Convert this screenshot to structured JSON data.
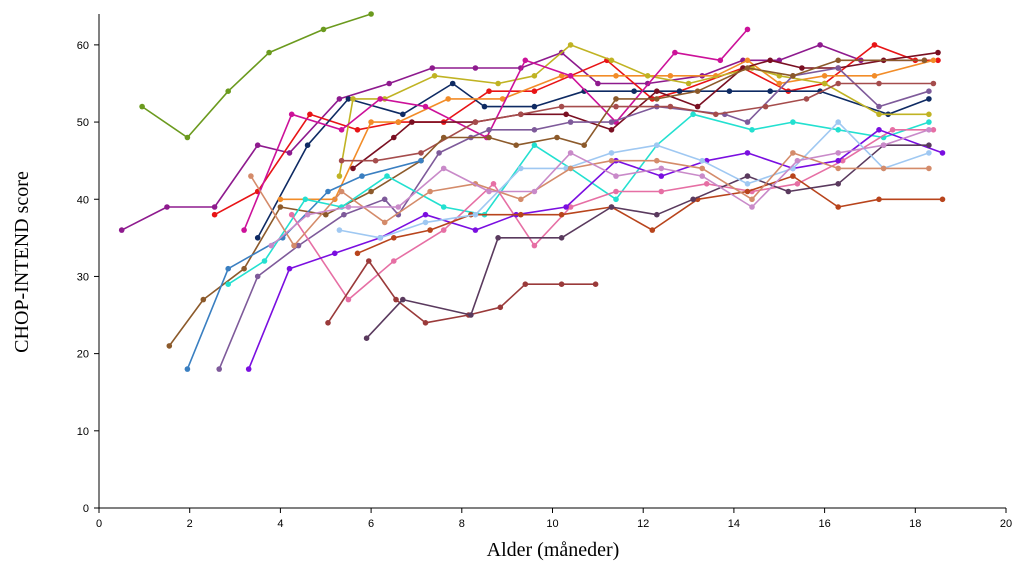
{
  "chart_data": {
    "type": "line",
    "title": "",
    "xlabel": "Alder (måneder)",
    "ylabel": "CHOP-INTEND score",
    "xlim": [
      0,
      20
    ],
    "ylim": [
      0,
      64
    ],
    "xticks": [
      "0",
      "2",
      "4",
      "6",
      "8",
      "10",
      "12",
      "14",
      "16",
      "18",
      "20"
    ],
    "yticks": [
      "0",
      "10",
      "20",
      "30",
      "40",
      "50",
      "60"
    ],
    "grid": false,
    "legend": "none",
    "series": [
      {
        "color": "#6b9a1e",
        "points": [
          [
            0.95,
            52
          ],
          [
            1.95,
            48
          ],
          [
            2.85,
            54
          ],
          [
            3.75,
            59
          ],
          [
            4.95,
            62
          ],
          [
            6.0,
            64
          ]
        ]
      },
      {
        "color": "#8e1a8e",
        "points": [
          [
            0.5,
            36
          ],
          [
            1.5,
            39
          ],
          [
            2.55,
            39
          ],
          [
            3.5,
            47
          ],
          [
            4.2,
            46
          ],
          [
            5.3,
            53
          ],
          [
            6.4,
            55
          ],
          [
            7.35,
            57
          ],
          [
            8.3,
            57
          ],
          [
            9.3,
            57
          ],
          [
            10.2,
            59
          ],
          [
            11.0,
            55
          ],
          [
            12.1,
            55
          ],
          [
            13.3,
            56
          ],
          [
            14.2,
            58
          ],
          [
            15.0,
            58
          ],
          [
            15.9,
            60
          ],
          [
            16.8,
            58
          ],
          [
            18.2,
            58
          ]
        ]
      },
      {
        "color": "#e81416",
        "points": [
          [
            2.55,
            38
          ],
          [
            3.5,
            41
          ],
          [
            4.65,
            51
          ],
          [
            5.7,
            49
          ],
          [
            6.6,
            50
          ],
          [
            7.6,
            50
          ],
          [
            8.6,
            54
          ],
          [
            9.6,
            54
          ],
          [
            10.4,
            56
          ],
          [
            11.2,
            58
          ],
          [
            12.2,
            53
          ],
          [
            12.8,
            54
          ],
          [
            14.2,
            57
          ],
          [
            15.2,
            54
          ],
          [
            16.0,
            55
          ],
          [
            17.1,
            60
          ],
          [
            18.0,
            58
          ],
          [
            18.5,
            58
          ]
        ]
      },
      {
        "color": "#0e2a63",
        "points": [
          [
            3.5,
            35
          ],
          [
            4.6,
            47
          ],
          [
            5.5,
            53
          ],
          [
            6.7,
            51
          ],
          [
            7.8,
            55
          ],
          [
            8.5,
            52
          ],
          [
            9.6,
            52
          ],
          [
            10.7,
            54
          ],
          [
            11.8,
            54
          ],
          [
            12.8,
            54
          ],
          [
            13.9,
            54
          ],
          [
            14.8,
            54
          ],
          [
            15.9,
            54
          ],
          [
            17.4,
            51
          ],
          [
            18.3,
            53
          ]
        ]
      },
      {
        "color": "#f28c28",
        "points": [
          [
            4.0,
            40
          ],
          [
            5.2,
            40
          ],
          [
            6.0,
            50
          ],
          [
            6.6,
            50
          ],
          [
            7.7,
            53
          ],
          [
            8.9,
            53
          ],
          [
            10.2,
            56
          ],
          [
            11.4,
            56
          ],
          [
            12.6,
            56
          ],
          [
            13.6,
            56
          ],
          [
            14.3,
            58
          ],
          [
            15.0,
            55
          ],
          [
            16.0,
            56
          ],
          [
            17.1,
            56
          ],
          [
            18.4,
            58
          ]
        ]
      },
      {
        "color": "#c0b323",
        "points": [
          [
            5.3,
            43
          ],
          [
            5.6,
            53
          ],
          [
            6.3,
            53
          ],
          [
            7.4,
            56
          ],
          [
            8.8,
            55
          ],
          [
            9.6,
            56
          ],
          [
            10.4,
            60
          ],
          [
            11.3,
            58
          ],
          [
            12.1,
            56
          ],
          [
            13.0,
            55
          ],
          [
            14.4,
            57
          ],
          [
            15.0,
            56
          ],
          [
            16.0,
            55
          ],
          [
            17.2,
            51
          ],
          [
            18.3,
            51
          ]
        ]
      },
      {
        "color": "#cc1199",
        "points": [
          [
            3.2,
            36
          ],
          [
            4.25,
            51
          ],
          [
            5.35,
            49
          ],
          [
            6.2,
            53
          ],
          [
            7.2,
            52
          ],
          [
            8.55,
            48
          ],
          [
            9.4,
            58
          ],
          [
            10.4,
            56
          ],
          [
            11.4,
            50
          ],
          [
            12.7,
            59
          ],
          [
            13.7,
            58
          ],
          [
            14.3,
            62
          ]
        ]
      },
      {
        "color": "#7a0f22",
        "points": [
          [
            5.6,
            44
          ],
          [
            6.5,
            48
          ],
          [
            6.9,
            50
          ],
          [
            8.3,
            50
          ],
          [
            9.3,
            51
          ],
          [
            10.3,
            51
          ],
          [
            11.3,
            49
          ],
          [
            12.3,
            54
          ],
          [
            13.2,
            52
          ],
          [
            14.2,
            57
          ],
          [
            14.8,
            58
          ],
          [
            15.5,
            57
          ],
          [
            16.3,
            57
          ],
          [
            17.3,
            58
          ],
          [
            18.5,
            59
          ]
        ]
      },
      {
        "color": "#7e5a9a",
        "points": [
          [
            2.65,
            18
          ],
          [
            3.5,
            30
          ],
          [
            4.4,
            34
          ],
          [
            5.4,
            38
          ],
          [
            6.3,
            40
          ],
          [
            6.6,
            38
          ],
          [
            7.5,
            46
          ],
          [
            8.2,
            48
          ],
          [
            8.6,
            49
          ],
          [
            9.6,
            49
          ],
          [
            10.4,
            50
          ],
          [
            11.3,
            50
          ],
          [
            12.3,
            52
          ],
          [
            13.8,
            51
          ],
          [
            14.3,
            50
          ],
          [
            15.3,
            56
          ],
          [
            16.3,
            57
          ],
          [
            17.2,
            52
          ],
          [
            18.3,
            54
          ]
        ]
      },
      {
        "color": "#a54c4c",
        "points": [
          [
            5.35,
            45
          ],
          [
            6.1,
            45
          ],
          [
            7.1,
            46
          ],
          [
            8.3,
            50
          ],
          [
            9.3,
            51
          ],
          [
            10.2,
            52
          ],
          [
            11.4,
            52
          ],
          [
            12.6,
            52
          ],
          [
            13.6,
            51
          ],
          [
            14.7,
            52
          ],
          [
            15.6,
            53
          ],
          [
            16.3,
            55
          ],
          [
            17.2,
            55
          ],
          [
            18.4,
            55
          ]
        ]
      },
      {
        "color": "#8c5a2b",
        "points": [
          [
            1.55,
            21
          ],
          [
            2.3,
            27
          ],
          [
            3.2,
            31
          ],
          [
            4.0,
            39
          ],
          [
            5.0,
            38
          ],
          [
            6.0,
            41
          ],
          [
            7.1,
            45
          ],
          [
            7.6,
            48
          ],
          [
            8.6,
            48
          ],
          [
            9.2,
            47
          ],
          [
            10.1,
            48
          ],
          [
            10.7,
            47
          ],
          [
            11.4,
            53
          ],
          [
            12.3,
            53
          ],
          [
            13.2,
            54
          ],
          [
            14.3,
            57
          ],
          [
            15.3,
            56
          ],
          [
            16.3,
            58
          ],
          [
            18.2,
            58
          ]
        ]
      },
      {
        "color": "#3a7fc1",
        "points": [
          [
            1.95,
            18
          ],
          [
            2.85,
            31
          ],
          [
            4.05,
            35
          ],
          [
            5.05,
            41
          ],
          [
            5.8,
            43
          ],
          [
            7.1,
            45
          ]
        ]
      },
      {
        "color": "#23e0d0",
        "points": [
          [
            2.85,
            29
          ],
          [
            3.65,
            32
          ],
          [
            4.55,
            40
          ],
          [
            5.35,
            39
          ],
          [
            6.35,
            43
          ],
          [
            7.6,
            39
          ],
          [
            8.5,
            38
          ],
          [
            9.6,
            47
          ],
          [
            10.4,
            44
          ],
          [
            11.4,
            40
          ],
          [
            12.3,
            47
          ],
          [
            13.1,
            51
          ],
          [
            14.4,
            49
          ],
          [
            15.3,
            50
          ],
          [
            16.3,
            49
          ],
          [
            17.3,
            48
          ],
          [
            18.3,
            50
          ]
        ]
      },
      {
        "color": "#e66fa4",
        "points": [
          [
            4.25,
            38
          ],
          [
            5.5,
            27
          ],
          [
            6.5,
            32
          ],
          [
            7.6,
            36
          ],
          [
            8.7,
            42
          ],
          [
            9.6,
            34
          ],
          [
            10.4,
            39
          ],
          [
            11.4,
            41
          ],
          [
            12.4,
            41
          ],
          [
            13.4,
            42
          ],
          [
            14.4,
            41
          ],
          [
            15.4,
            42
          ],
          [
            16.4,
            45
          ],
          [
            17.5,
            49
          ],
          [
            18.4,
            49
          ]
        ]
      },
      {
        "color": "#7a0ee0",
        "points": [
          [
            3.3,
            18
          ],
          [
            4.2,
            31
          ],
          [
            5.2,
            33
          ],
          [
            6.2,
            35
          ],
          [
            7.2,
            38
          ],
          [
            8.3,
            36
          ],
          [
            9.2,
            38
          ],
          [
            10.3,
            39
          ],
          [
            11.4,
            45
          ],
          [
            12.4,
            43
          ],
          [
            13.4,
            45
          ],
          [
            14.3,
            46
          ],
          [
            15.3,
            44
          ],
          [
            16.3,
            45
          ],
          [
            17.2,
            49
          ],
          [
            18.6,
            46
          ]
        ]
      },
      {
        "color": "#b8441c",
        "points": [
          [
            5.7,
            33
          ],
          [
            6.5,
            35
          ],
          [
            7.3,
            36
          ],
          [
            8.2,
            38
          ],
          [
            9.3,
            38
          ],
          [
            10.2,
            38
          ],
          [
            11.3,
            39
          ],
          [
            12.2,
            36
          ],
          [
            13.2,
            40
          ],
          [
            14.3,
            41
          ],
          [
            15.3,
            43
          ],
          [
            16.3,
            39
          ],
          [
            17.2,
            40
          ],
          [
            18.6,
            40
          ]
        ]
      },
      {
        "color": "#9a3a3a",
        "points": [
          [
            5.05,
            24
          ],
          [
            5.95,
            32
          ],
          [
            6.55,
            27
          ],
          [
            7.2,
            24
          ],
          [
            8.15,
            25
          ],
          [
            8.85,
            26
          ],
          [
            9.4,
            29
          ],
          [
            10.2,
            29
          ],
          [
            10.95,
            29
          ]
        ]
      },
      {
        "color": "#5a3a5e",
        "points": [
          [
            5.9,
            22
          ],
          [
            6.7,
            27
          ],
          [
            8.2,
            25
          ],
          [
            8.8,
            35
          ],
          [
            10.2,
            35
          ],
          [
            11.3,
            39
          ],
          [
            12.3,
            38
          ],
          [
            13.1,
            40
          ],
          [
            14.3,
            43
          ],
          [
            15.2,
            41
          ],
          [
            16.3,
            42
          ],
          [
            17.3,
            47
          ],
          [
            18.3,
            47
          ]
        ]
      },
      {
        "color": "#9fc8f2",
        "points": [
          [
            5.3,
            36
          ],
          [
            6.2,
            35
          ],
          [
            7.2,
            37
          ],
          [
            8.3,
            38
          ],
          [
            9.3,
            44
          ],
          [
            10.3,
            44
          ],
          [
            11.3,
            46
          ],
          [
            12.3,
            47
          ],
          [
            13.3,
            45
          ],
          [
            14.3,
            42
          ],
          [
            15.3,
            44
          ],
          [
            16.3,
            50
          ],
          [
            17.3,
            44
          ],
          [
            18.3,
            46
          ]
        ]
      },
      {
        "color": "#d48b6a",
        "points": [
          [
            3.35,
            43
          ],
          [
            4.3,
            34
          ],
          [
            5.35,
            41
          ],
          [
            6.3,
            37
          ],
          [
            7.3,
            41
          ],
          [
            8.3,
            42
          ],
          [
            9.3,
            40
          ],
          [
            10.4,
            44
          ],
          [
            11.3,
            45
          ],
          [
            12.3,
            45
          ],
          [
            13.3,
            44
          ],
          [
            14.4,
            40
          ],
          [
            15.3,
            46
          ],
          [
            16.3,
            44
          ],
          [
            17.3,
            44
          ],
          [
            18.3,
            44
          ]
        ]
      },
      {
        "color": "#c98ac9",
        "points": [
          [
            3.8,
            34
          ],
          [
            4.6,
            38
          ],
          [
            5.5,
            39
          ],
          [
            6.6,
            39
          ],
          [
            7.6,
            44
          ],
          [
            8.6,
            41
          ],
          [
            9.6,
            41
          ],
          [
            10.4,
            46
          ],
          [
            11.4,
            43
          ],
          [
            12.4,
            44
          ],
          [
            13.3,
            43
          ],
          [
            14.4,
            39
          ],
          [
            15.4,
            45
          ],
          [
            16.3,
            46
          ],
          [
            17.3,
            47
          ],
          [
            18.3,
            49
          ]
        ]
      }
    ]
  }
}
